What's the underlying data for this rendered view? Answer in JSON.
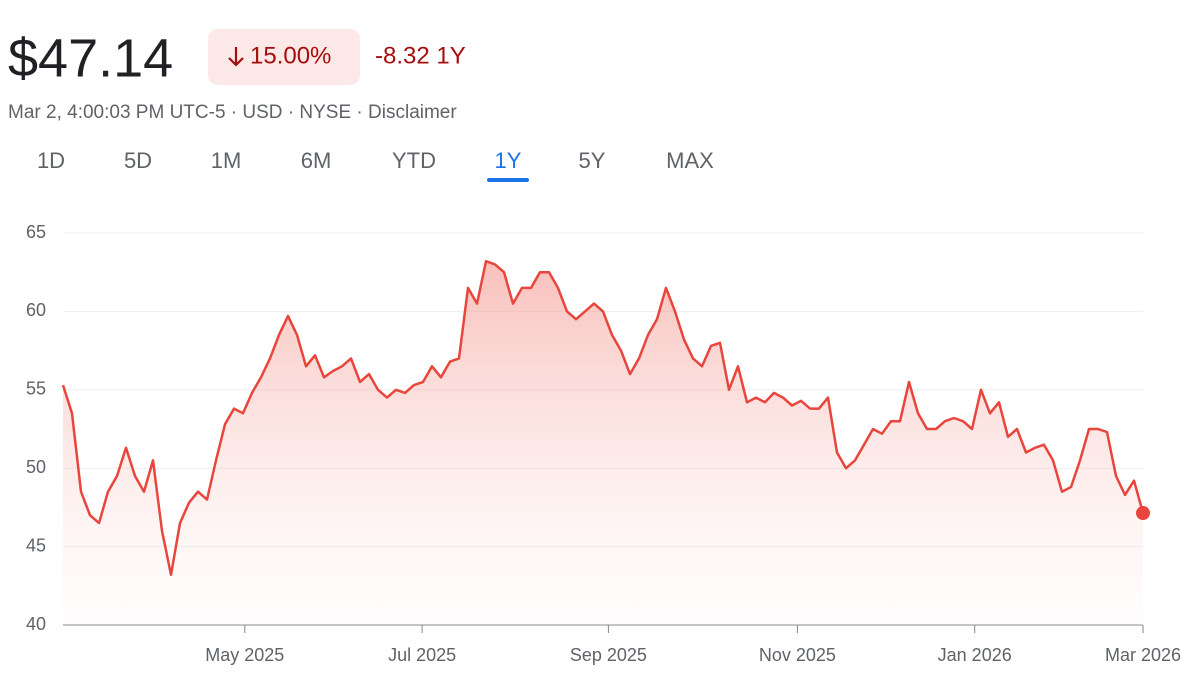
{
  "header": {
    "price": "$47.14",
    "change_percent": "15.00%",
    "change": "-8.32 1Y",
    "info": "Mar 2, 4:00:03 PM UTC-5 · USD · NYSE · Disclaimer"
  },
  "tabs": [
    {
      "label": "1D"
    },
    {
      "label": "5D"
    },
    {
      "label": "1M"
    },
    {
      "label": "6M"
    },
    {
      "label": "YTD"
    },
    {
      "label": "1Y",
      "selected": true
    },
    {
      "label": "5Y"
    },
    {
      "label": "MAX"
    }
  ],
  "chart_data": {
    "type": "line",
    "series": [
      {
        "color": "#e8453c",
        "values": [
          55.3,
          53.5,
          48.5,
          47,
          46.5,
          48.5,
          49.5,
          51.3,
          49.5,
          48.5,
          50.5,
          46,
          43.2,
          46.5,
          47.8,
          48.5,
          48,
          50.5,
          52.8,
          53.8,
          53.5,
          54.8,
          55.8,
          57,
          58.5,
          59.7,
          58.5,
          56.5,
          57.2,
          55.8,
          56.2,
          56.5,
          57,
          55.5,
          56,
          55,
          54.5,
          55,
          54.8,
          55.3,
          55.5,
          56.5,
          55.8,
          56.8,
          57,
          61.5,
          60.5,
          63.2,
          63,
          62.5,
          60.5,
          61.5,
          61.5,
          62.5,
          62.5,
          61.5,
          60,
          59.5,
          60,
          60.5,
          60,
          58.5,
          57.5,
          56,
          57,
          58.5,
          59.5,
          61.5,
          60,
          58.2,
          57,
          56.5,
          57.8,
          58,
          55,
          56.5,
          54.2,
          54.5,
          54.2,
          54.8,
          54.5,
          54,
          54.3,
          53.8,
          53.8,
          54.5,
          51,
          50,
          50.5,
          51.5,
          52.5,
          52.2,
          53,
          53,
          55.5,
          53.5,
          52.5,
          52.5,
          53,
          53.2,
          53,
          52.5,
          55,
          53.5,
          54.2,
          52,
          52.5,
          51,
          51.3,
          51.5,
          50.5,
          48.5,
          48.8,
          50.5,
          52.5,
          52.5,
          52.3,
          49.5,
          48.3,
          49.2,
          47.14
        ]
      }
    ],
    "xlim": [
      0,
      120
    ],
    "xticks": [
      {
        "value": 20.2,
        "label": "May 2025"
      },
      {
        "value": 39.9,
        "label": "Jul 2025"
      },
      {
        "value": 60.6,
        "label": "Sep 2025"
      },
      {
        "value": 81.6,
        "label": "Nov 2025"
      },
      {
        "value": 101.3,
        "label": "Jan 2026"
      },
      {
        "value": 120,
        "label": "Mar 2026"
      }
    ],
    "ylim": [
      40,
      65
    ],
    "yticks": [
      40,
      45,
      50,
      55,
      60,
      65
    ],
    "grid": true
  }
}
